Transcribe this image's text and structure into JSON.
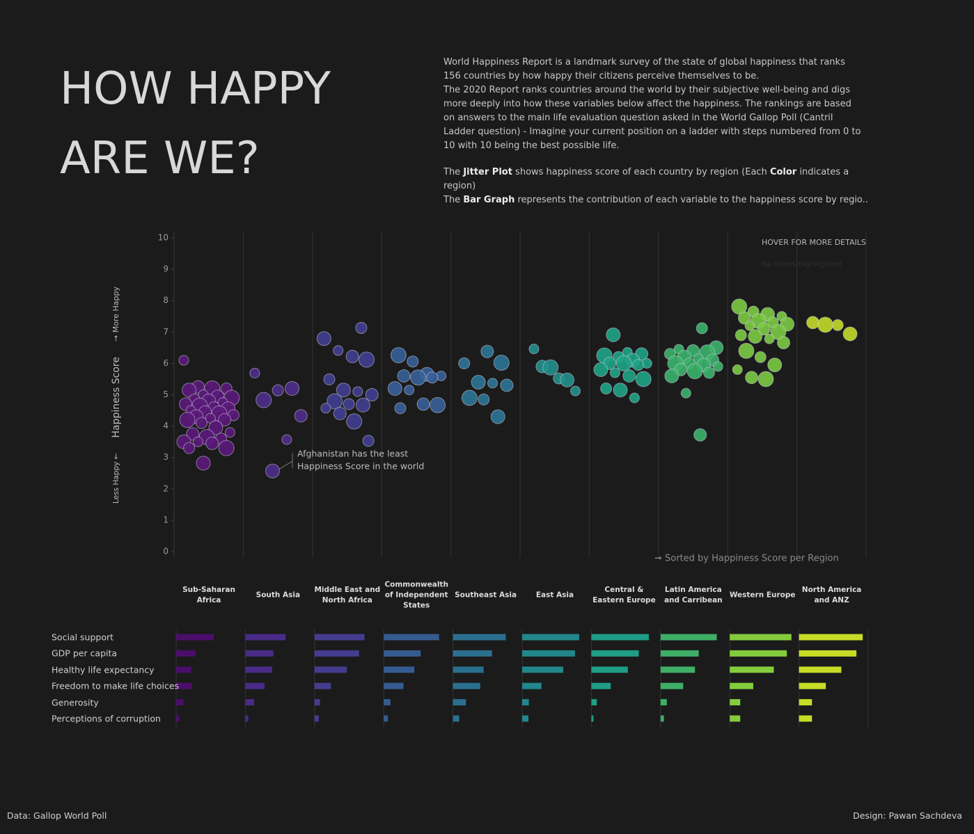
{
  "header": {
    "title_lines": [
      "HOW HAPPY",
      "ARE WE?"
    ],
    "description": [
      [
        "World Happiness Report is a landmark survey of the state of global happiness that ranks 156 countries by how happy their citizens perceive themselves to be."
      ],
      [
        "The 2020 Report ranks countries around the world by their subjective well-being and digs more deeply into how these variables below affect the happiness. The rankings are based on answers to the main life evaluation question asked in the World Gallop Poll (Cantril Ladder question) - Imagine your current position on a ladder with steps numbered from 0 to 10 with 10 being the best possible life."
      ],
      [
        "The ",
        "Jitter Plot",
        " shows happiness score of each country by region (Each ",
        "Color",
        " indicates a region)"
      ],
      [
        "The ",
        "Bar Graph",
        " represents the contribution of each variable to the happiness score by regio.."
      ]
    ]
  },
  "chart_data": [
    {
      "type": "jitter",
      "ylabel": [
        "Less Happy ←",
        "Happiness Score",
        "→ More Happy"
      ],
      "ylim": [
        0,
        10
      ],
      "yticks": [
        0,
        1,
        2,
        3,
        4,
        5,
        6,
        7,
        8,
        9,
        10
      ],
      "hover_title": "HOVER FOR MORE DETAILS",
      "hover_note": "No items highlighted",
      "sort_note": "➞ Sorted by Happiness Score per Region",
      "annotation": {
        "text_lines": [
          "Afghanistan has the least",
          "Happiness Score in the world"
        ],
        "series": 1,
        "point": 0
      },
      "series": [
        {
          "name": "Sub-Saharan Africa",
          "color": "#5c1a7c",
          "values": [
            6.1,
            5.25,
            5.2,
            5.2,
            5.15,
            5.0,
            4.95,
            4.9,
            4.85,
            4.8,
            4.75,
            4.7,
            4.65,
            4.6,
            4.55,
            4.5,
            4.45,
            4.4,
            4.35,
            4.3,
            4.25,
            4.2,
            4.2,
            4.1,
            3.95,
            3.8,
            3.75,
            3.65,
            3.6,
            3.5,
            3.5,
            3.45,
            3.3,
            3.3,
            2.82
          ]
        },
        {
          "name": "South Asia",
          "color": "#4f2d8c",
          "values": [
            2.57,
            3.57,
            4.33,
            4.83,
            5.14,
            5.2,
            5.69
          ]
        },
        {
          "name": "Middle East and North Africa",
          "color": "#433f92",
          "values": [
            7.13,
            6.79,
            6.41,
            6.22,
            6.12,
            5.49,
            5.15,
            5.1,
            5.0,
            4.79,
            4.7,
            4.67,
            4.57,
            4.4,
            4.15,
            3.53
          ]
        },
        {
          "name": "Commonwealth of Independent States",
          "color": "#39609a",
          "values": [
            6.26,
            6.06,
            5.65,
            5.6,
            5.6,
            5.55,
            5.55,
            5.2,
            5.15,
            4.7,
            4.67,
            4.57
          ]
        },
        {
          "name": "Southeast Asia",
          "color": "#2e7697",
          "values": [
            6.38,
            6.02,
            6.0,
            5.4,
            5.37,
            5.3,
            4.9,
            4.85,
            4.3
          ]
        },
        {
          "name": "East Asia",
          "color": "#22908d",
          "values": [
            6.46,
            5.9,
            5.87,
            5.52,
            5.47,
            5.12
          ]
        },
        {
          "name": "Central & Eastern Europe",
          "color": "#1fa487",
          "values": [
            6.91,
            6.35,
            6.3,
            6.25,
            6.2,
            6.1,
            6.0,
            6.0,
            6.0,
            5.95,
            5.8,
            5.7,
            5.6,
            5.5,
            5.2,
            5.15,
            4.9
          ]
        },
        {
          "name": "Latin America and Carribean",
          "color": "#3cb46c",
          "values": [
            7.12,
            6.5,
            6.45,
            6.4,
            6.35,
            6.3,
            6.2,
            6.15,
            6.1,
            6.0,
            6.0,
            5.95,
            5.9,
            5.8,
            5.75,
            5.7,
            5.6,
            5.05,
            3.72
          ]
        },
        {
          "name": "Western Europe",
          "color": "#7ccb45",
          "values": [
            7.81,
            7.65,
            7.56,
            7.5,
            7.45,
            7.35,
            7.3,
            7.25,
            7.2,
            7.1,
            7.0,
            6.9,
            6.86,
            6.78,
            6.66,
            6.4,
            6.2,
            5.95,
            5.8,
            5.55,
            5.5
          ]
        },
        {
          "name": "North America and ANZ",
          "color": "#c3dc2a",
          "values": [
            7.3,
            7.23,
            7.22,
            6.94
          ]
        }
      ]
    },
    {
      "type": "bar",
      "xlim": [
        0,
        1.6
      ],
      "categories": [
        "Social support",
        "GDP per capita",
        "Healthy life expectancy",
        "Freedom to make life choices",
        "Generosity",
        "Perceptions of corruption"
      ],
      "series": [
        {
          "color": "#4b0e6b",
          "values": [
            0.9,
            0.46,
            0.36,
            0.38,
            0.18,
            0.08
          ]
        },
        {
          "color": "#4a2b88",
          "values": [
            0.96,
            0.67,
            0.64,
            0.46,
            0.21,
            0.07
          ]
        },
        {
          "color": "#443d8f",
          "values": [
            1.19,
            1.06,
            0.77,
            0.39,
            0.13,
            0.1
          ]
        },
        {
          "color": "#355b90",
          "values": [
            1.32,
            0.88,
            0.73,
            0.47,
            0.16,
            0.1
          ]
        },
        {
          "color": "#2b6f8f",
          "values": [
            1.26,
            0.93,
            0.73,
            0.65,
            0.31,
            0.15
          ]
        },
        {
          "color": "#21878b",
          "values": [
            1.36,
            1.26,
            0.98,
            0.46,
            0.16,
            0.15
          ]
        },
        {
          "color": "#1f9d86",
          "values": [
            1.37,
            1.13,
            0.87,
            0.46,
            0.13,
            0.05
          ]
        },
        {
          "color": "#3fae67",
          "values": [
            1.34,
            0.91,
            0.82,
            0.54,
            0.15,
            0.08
          ]
        },
        {
          "color": "#84cc3c",
          "values": [
            1.47,
            1.36,
            1.05,
            0.56,
            0.25,
            0.25
          ]
        },
        {
          "color": "#c6dc27",
          "values": [
            1.52,
            1.37,
            1.01,
            0.64,
            0.31,
            0.31
          ]
        }
      ]
    }
  ],
  "footer": {
    "source": "Data: Gallop World Poll",
    "credit": "Design: Pawan Sachdeva"
  }
}
